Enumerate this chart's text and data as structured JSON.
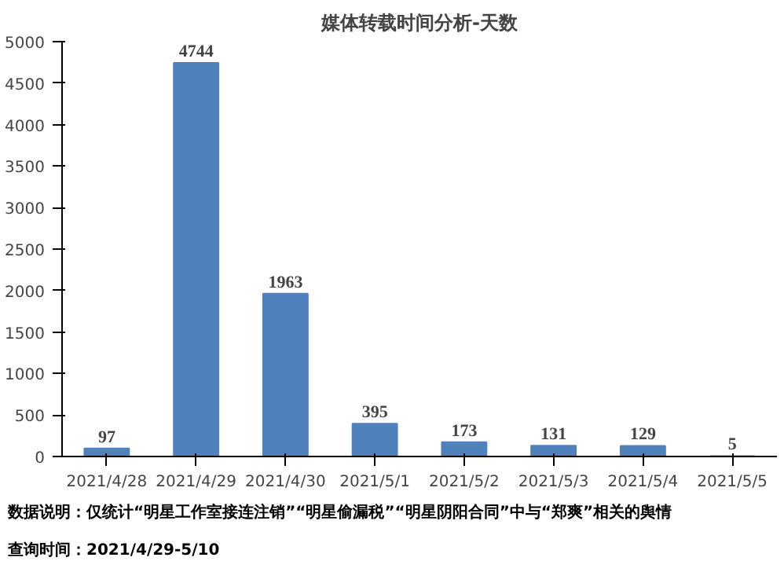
{
  "chart_data": {
    "type": "bar",
    "title": "媒体转载时间分析-天数",
    "categories": [
      "2021/4/28",
      "2021/4/29",
      "2021/4/30",
      "2021/5/1",
      "2021/5/2",
      "2021/5/3",
      "2021/5/4",
      "2021/5/5"
    ],
    "values": [
      97,
      4744,
      1963,
      395,
      173,
      131,
      129,
      5
    ],
    "color": "#4f81bd",
    "data_labels": true,
    "ylim": [
      0,
      5000
    ],
    "yticks": [
      0,
      500,
      1000,
      1500,
      2000,
      2500,
      3000,
      3500,
      4000,
      4500,
      5000
    ],
    "annotations": [
      "数据说明：仅统计“明星工作室接连注销”“明星偷漏税”“明星阴阳合同”中与“郑爽”相关的舆情",
      "查询时间：2021/4/29-5/10"
    ]
  }
}
